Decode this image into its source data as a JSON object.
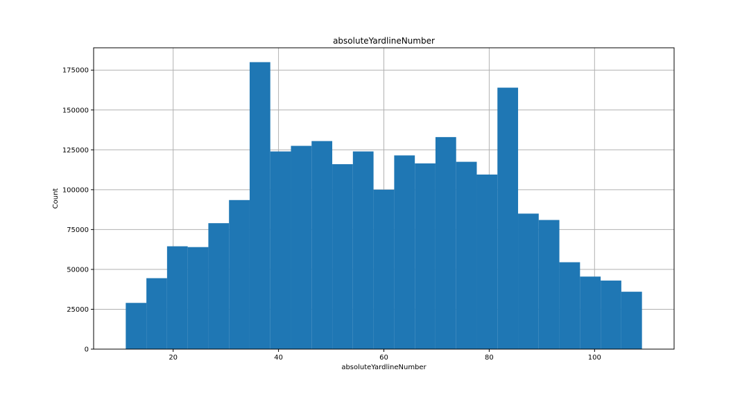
{
  "chart_data": {
    "type": "bar",
    "title": "absoluteYardlineNumber",
    "xlabel": "absoluteYardlineNumber",
    "ylabel": "Count",
    "bin_edges": [
      11,
      14.92,
      18.84,
      22.76,
      26.68,
      30.6,
      34.52,
      38.44,
      42.36,
      46.28,
      50.2,
      54.12,
      58.04,
      61.96,
      65.88,
      69.8,
      73.72,
      77.64,
      81.56,
      85.48,
      89.4,
      93.32,
      97.24,
      101.16,
      105.08,
      109
    ],
    "values": [
      29000,
      44500,
      64500,
      64000,
      79000,
      93500,
      180000,
      124000,
      127500,
      130500,
      116000,
      124000,
      100000,
      121500,
      116500,
      133000,
      117500,
      109500,
      164000,
      85000,
      81000,
      54500,
      45500,
      43000,
      36000
    ],
    "xlim": [
      4.9,
      115.1
    ],
    "ylim": [
      0,
      189000
    ],
    "xticks": [
      20,
      40,
      60,
      80,
      100
    ],
    "yticks": [
      0,
      25000,
      50000,
      75000,
      100000,
      125000,
      150000,
      175000
    ],
    "grid": true,
    "bar_color": "#1f77b4"
  }
}
